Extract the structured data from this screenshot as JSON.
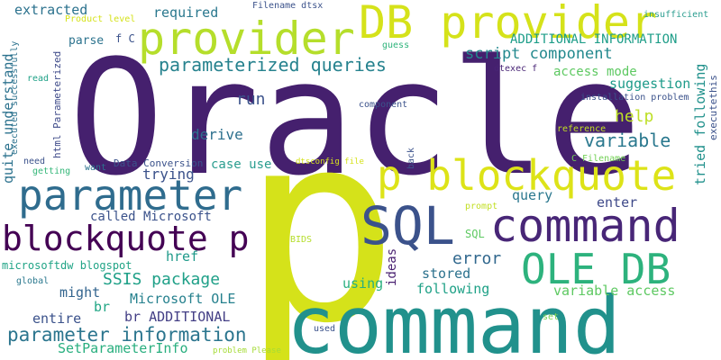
{
  "words": [
    {
      "text": "Oracle",
      "color": "#45206e"
    },
    {
      "text": "p",
      "color": "#d5e21a"
    },
    {
      "text": "command",
      "color": "#21918c"
    },
    {
      "text": "DB provider",
      "color": "#d5e21a"
    },
    {
      "text": "provider",
      "color": "#b5de2b"
    },
    {
      "text": "parameter",
      "color": "#2f6c8e"
    },
    {
      "text": "p blockquote",
      "color": "#dde318"
    },
    {
      "text": "SQL",
      "color": "#3b528b"
    },
    {
      "text": "command",
      "color": "#482677"
    },
    {
      "text": "blockquote p",
      "color": "#440154"
    },
    {
      "text": "OLE DB",
      "color": "#2db27d"
    },
    {
      "text": "parameterized queries",
      "color": "#26828e"
    },
    {
      "text": "script component",
      "color": "#23898e"
    },
    {
      "text": "parameter information",
      "color": "#2b758e"
    },
    {
      "text": "SSIS package",
      "color": "#1fa088"
    },
    {
      "text": "variable",
      "color": "#2a788e"
    },
    {
      "text": "ADDITIONAL INFORMATION",
      "color": "#1f9e89"
    },
    {
      "text": "access mode",
      "color": "#5ec962"
    },
    {
      "text": "suggestion",
      "color": "#1e9b8a"
    },
    {
      "text": "help",
      "color": "#bddf26"
    },
    {
      "text": "tried following",
      "color": "#21918c"
    },
    {
      "text": "error",
      "color": "#31688e"
    },
    {
      "text": "run",
      "color": "#3b528b"
    },
    {
      "text": "derive",
      "color": "#2d708e"
    },
    {
      "text": "case use",
      "color": "#2a9d8f"
    },
    {
      "text": "trying",
      "color": "#3b528b"
    },
    {
      "text": "called Microsoft",
      "color": "#3b528b"
    },
    {
      "text": "query",
      "color": "#2a778e"
    },
    {
      "text": "enter",
      "color": "#3e4989"
    },
    {
      "text": "href",
      "color": "#1f9a8a"
    },
    {
      "text": "stored",
      "color": "#2c728e"
    },
    {
      "text": "using",
      "color": "#29af7f"
    },
    {
      "text": "following",
      "color": "#1fa187"
    },
    {
      "text": "variable access",
      "color": "#5ec962"
    },
    {
      "text": "Microsoft OLE",
      "color": "#26818e"
    },
    {
      "text": "br ADDITIONAL",
      "color": "#433e85"
    },
    {
      "text": "might",
      "color": "#32648e"
    },
    {
      "text": "br",
      "color": "#21a685"
    },
    {
      "text": "entire",
      "color": "#3b528b"
    },
    {
      "text": "SetParameterInfo",
      "color": "#29af7f"
    },
    {
      "text": "extracted",
      "color": "#2c728e"
    },
    {
      "text": "required",
      "color": "#2a788e"
    },
    {
      "text": "Filename dtsx",
      "color": "#3b528b"
    },
    {
      "text": "insufficient",
      "color": "#2a9d8f"
    },
    {
      "text": "Product level",
      "color": "#d5e21a"
    },
    {
      "text": "parse",
      "color": "#2c738e"
    },
    {
      "text": "f C",
      "color": "#3b528b"
    },
    {
      "text": "guess",
      "color": "#2fb47c"
    },
    {
      "text": "dtexec f",
      "color": "#482475"
    },
    {
      "text": "installation problem",
      "color": "#3b528b"
    },
    {
      "text": "component",
      "color": "#3b528b"
    },
    {
      "text": "reference",
      "color": "#c2df23"
    },
    {
      "text": "Data Conversion",
      "color": "#3b528b"
    },
    {
      "text": "dtsconfig file",
      "color": "#d5e21a"
    },
    {
      "text": "C Filename",
      "color": "#73d056"
    },
    {
      "text": "want",
      "color": "#2c728e"
    },
    {
      "text": "getting",
      "color": "#35b779"
    },
    {
      "text": "need",
      "color": "#3b528b"
    },
    {
      "text": "prompt",
      "color": "#c2df23"
    },
    {
      "text": "BIDS",
      "color": "#b5de2b"
    },
    {
      "text": "SQL",
      "color": "#5ec962"
    },
    {
      "text": "microsoftdw blogspot",
      "color": "#20a486"
    },
    {
      "text": "global",
      "color": "#2a788e"
    },
    {
      "text": "ideas",
      "color": "#481f70"
    },
    {
      "text": "used",
      "color": "#3b528b"
    },
    {
      "text": "set",
      "color": "#7ad151"
    },
    {
      "text": "problem Please",
      "color": "#a5db36"
    },
    {
      "text": "read",
      "color": "#1fa187"
    },
    {
      "text": "executed successfully",
      "color": "#2c728e"
    },
    {
      "text": "html Parameterized",
      "color": "#3e4a89"
    },
    {
      "text": "quite understand",
      "color": "#2c728e"
    },
    {
      "text": "back",
      "color": "#3b528b"
    },
    {
      "text": "executethis",
      "color": "#3b528b"
    }
  ]
}
